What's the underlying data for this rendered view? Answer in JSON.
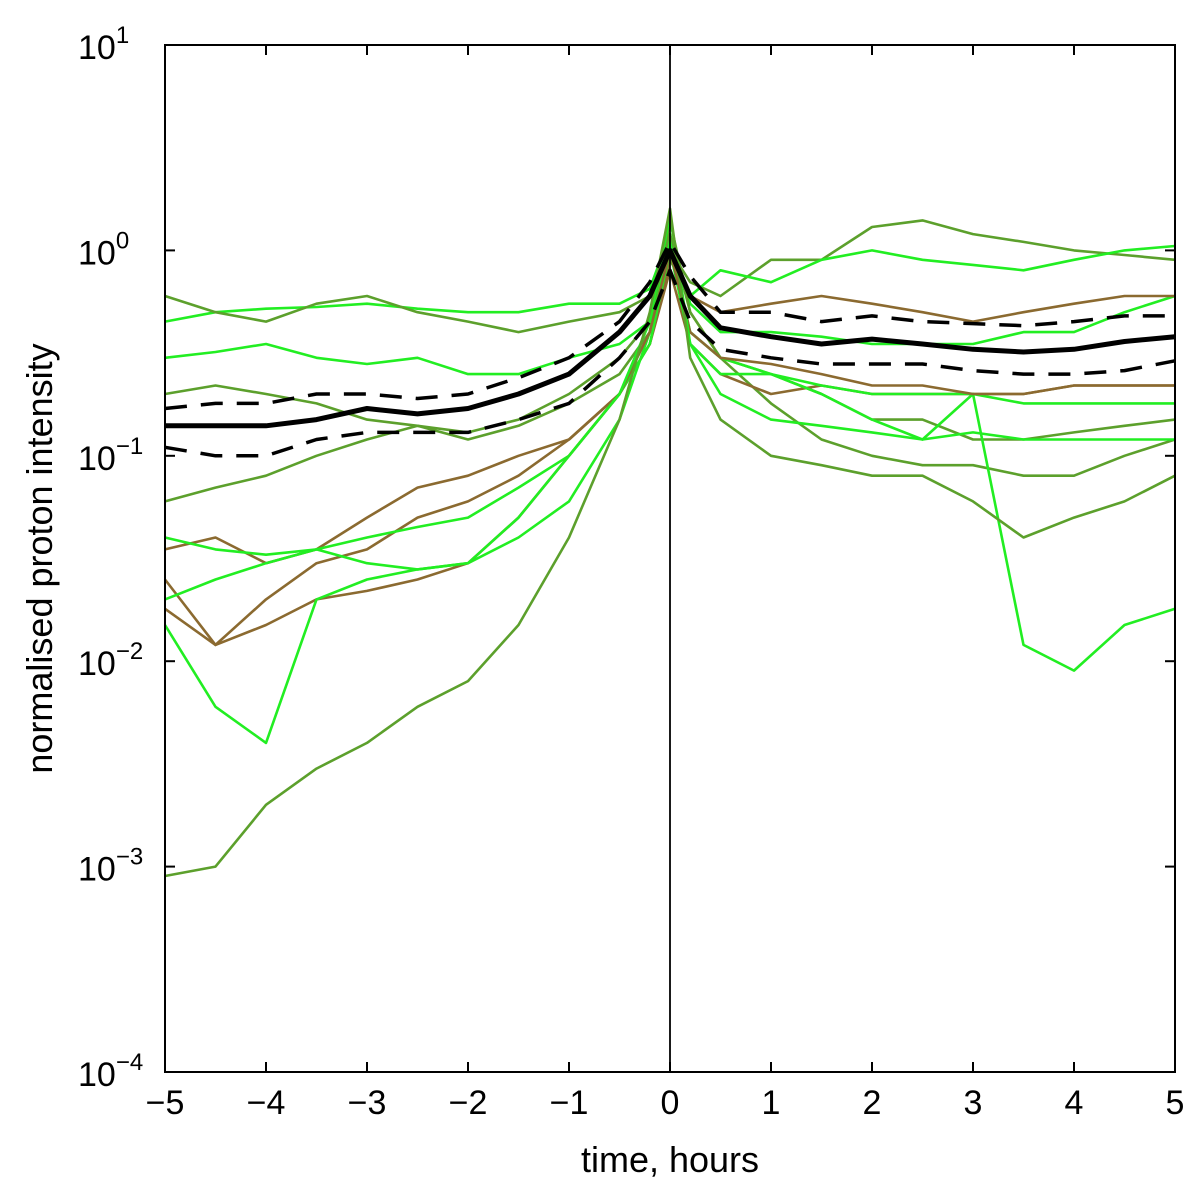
{
  "chart_data": {
    "type": "line",
    "title": "",
    "xlabel": "time, hours",
    "ylabel": "normalised proton intensity",
    "xlim": [
      -5,
      5
    ],
    "ylim": [
      0.0001,
      10
    ],
    "yscale": "log",
    "grid": false,
    "x_ticks": [
      "−5",
      "−4",
      "−3",
      "−2",
      "−1",
      "0",
      "1",
      "2",
      "3",
      "4",
      "5"
    ],
    "y_ticks": [
      {
        "base": "10",
        "exp": "−4"
      },
      {
        "base": "10",
        "exp": "−3"
      },
      {
        "base": "10",
        "exp": "−2"
      },
      {
        "base": "10",
        "exp": "−1"
      },
      {
        "base": "10",
        "exp": "0"
      },
      {
        "base": "10",
        "exp": "1"
      }
    ],
    "vertical_line_x": 0,
    "colors": {
      "bright_green": "#22ee22",
      "olive_green": "#5ca02c",
      "brown": "#8b6a30",
      "mean": "#000000"
    },
    "x": [
      -5,
      -4.5,
      -4,
      -3.5,
      -3,
      -2.5,
      -2,
      -1.5,
      -1,
      -0.5,
      -0.2,
      0,
      0.2,
      0.5,
      1,
      1.5,
      2,
      2.5,
      3,
      3.5,
      4,
      4.5,
      5
    ],
    "series": [
      {
        "color": "#22ee22",
        "style": "thin",
        "values": [
          0.45,
          0.5,
          0.52,
          0.53,
          0.55,
          0.52,
          0.5,
          0.5,
          0.55,
          0.55,
          0.65,
          1.2,
          0.55,
          0.4,
          0.4,
          0.38,
          0.35,
          0.35,
          0.35,
          0.4,
          0.4,
          0.5,
          0.6
        ]
      },
      {
        "color": "#5ca02c",
        "style": "thin",
        "values": [
          0.6,
          0.5,
          0.45,
          0.55,
          0.6,
          0.5,
          0.45,
          0.4,
          0.45,
          0.5,
          0.6,
          1.0,
          0.7,
          0.6,
          0.9,
          0.9,
          1.3,
          1.4,
          1.2,
          1.1,
          1.0,
          0.95,
          0.9
        ]
      },
      {
        "color": "#22ee22",
        "style": "thin",
        "values": [
          0.3,
          0.32,
          0.35,
          0.3,
          0.28,
          0.3,
          0.25,
          0.25,
          0.3,
          0.35,
          0.45,
          0.9,
          0.6,
          0.8,
          0.7,
          0.9,
          1.0,
          0.9,
          0.85,
          0.8,
          0.9,
          1.0,
          1.05
        ]
      },
      {
        "color": "#5ca02c",
        "style": "thin",
        "values": [
          0.2,
          0.22,
          0.2,
          0.18,
          0.15,
          0.14,
          0.13,
          0.15,
          0.2,
          0.3,
          0.45,
          1.2,
          0.5,
          0.3,
          0.25,
          0.2,
          0.15,
          0.15,
          0.12,
          0.12,
          0.13,
          0.14,
          0.15
        ]
      },
      {
        "color": "#5ca02c",
        "style": "thin",
        "values": [
          0.06,
          0.07,
          0.08,
          0.1,
          0.12,
          0.14,
          0.12,
          0.14,
          0.18,
          0.25,
          0.4,
          1.4,
          0.5,
          0.3,
          0.18,
          0.12,
          0.1,
          0.09,
          0.09,
          0.08,
          0.08,
          0.1,
          0.12
        ]
      },
      {
        "color": "#8b6a30",
        "style": "thin",
        "values": [
          0.035,
          0.04,
          0.03,
          0.035,
          0.05,
          0.07,
          0.08,
          0.1,
          0.12,
          0.2,
          0.35,
          0.9,
          0.6,
          0.5,
          0.55,
          0.6,
          0.55,
          0.5,
          0.45,
          0.5,
          0.55,
          0.6,
          0.6
        ]
      },
      {
        "color": "#8b6a30",
        "style": "thin",
        "values": [
          0.025,
          0.012,
          0.02,
          0.03,
          0.035,
          0.05,
          0.06,
          0.08,
          0.12,
          0.2,
          0.35,
          0.8,
          0.35,
          0.25,
          0.2,
          0.22,
          0.2,
          0.2,
          0.2,
          0.2,
          0.22,
          0.22,
          0.22
        ]
      },
      {
        "color": "#22ee22",
        "style": "thin",
        "values": [
          0.04,
          0.035,
          0.033,
          0.035,
          0.04,
          0.045,
          0.05,
          0.07,
          0.1,
          0.2,
          0.35,
          1.0,
          0.35,
          0.25,
          0.25,
          0.22,
          0.2,
          0.2,
          0.2,
          0.18,
          0.18,
          0.18,
          0.18
        ]
      },
      {
        "color": "#22ee22",
        "style": "thin",
        "values": [
          0.02,
          0.025,
          0.03,
          0.035,
          0.03,
          0.028,
          0.03,
          0.04,
          0.06,
          0.15,
          0.4,
          1.1,
          0.4,
          0.3,
          0.25,
          0.2,
          0.15,
          0.12,
          0.2,
          0.012,
          0.009,
          0.015,
          0.018
        ]
      },
      {
        "color": "#8b6a30",
        "style": "thin",
        "values": [
          0.018,
          0.012,
          0.015,
          0.02,
          0.022,
          0.025,
          0.03,
          0.05,
          0.1,
          0.2,
          0.4,
          1.0,
          0.4,
          0.3,
          0.28,
          0.25,
          0.22,
          0.22,
          0.2,
          0.2,
          0.22,
          0.22,
          0.22
        ]
      },
      {
        "color": "#22ee22",
        "style": "thin",
        "values": [
          0.015,
          0.006,
          0.004,
          0.02,
          0.025,
          0.028,
          0.03,
          0.05,
          0.1,
          0.2,
          0.45,
          1.5,
          0.35,
          0.2,
          0.15,
          0.14,
          0.13,
          0.12,
          0.13,
          0.12,
          0.12,
          0.12,
          0.12
        ]
      },
      {
        "color": "#5ca02c",
        "style": "thin",
        "values": [
          0.0009,
          0.001,
          0.002,
          0.003,
          0.004,
          0.006,
          0.008,
          0.015,
          0.04,
          0.15,
          0.5,
          1.6,
          0.3,
          0.15,
          0.1,
          0.09,
          0.08,
          0.08,
          0.06,
          0.04,
          0.05,
          0.06,
          0.08
        ]
      },
      {
        "name": "",
        "color": "#000000",
        "style": "mean",
        "values": [
          0.14,
          0.14,
          0.14,
          0.15,
          0.17,
          0.16,
          0.17,
          0.2,
          0.25,
          0.4,
          0.6,
          1.0,
          0.6,
          0.42,
          0.38,
          0.35,
          0.37,
          0.35,
          0.33,
          0.32,
          0.33,
          0.36,
          0.38
        ]
      },
      {
        "name": "",
        "color": "#000000",
        "style": "dashed",
        "values": [
          0.17,
          0.18,
          0.18,
          0.2,
          0.2,
          0.19,
          0.2,
          0.24,
          0.3,
          0.45,
          0.7,
          1.1,
          0.75,
          0.5,
          0.5,
          0.45,
          0.48,
          0.45,
          0.44,
          0.43,
          0.45,
          0.48,
          0.48
        ]
      },
      {
        "name": "",
        "color": "#000000",
        "style": "dashed",
        "values": [
          0.11,
          0.1,
          0.1,
          0.12,
          0.13,
          0.13,
          0.13,
          0.15,
          0.18,
          0.3,
          0.45,
          0.8,
          0.45,
          0.33,
          0.3,
          0.28,
          0.28,
          0.28,
          0.26,
          0.25,
          0.25,
          0.26,
          0.29
        ]
      }
    ]
  }
}
